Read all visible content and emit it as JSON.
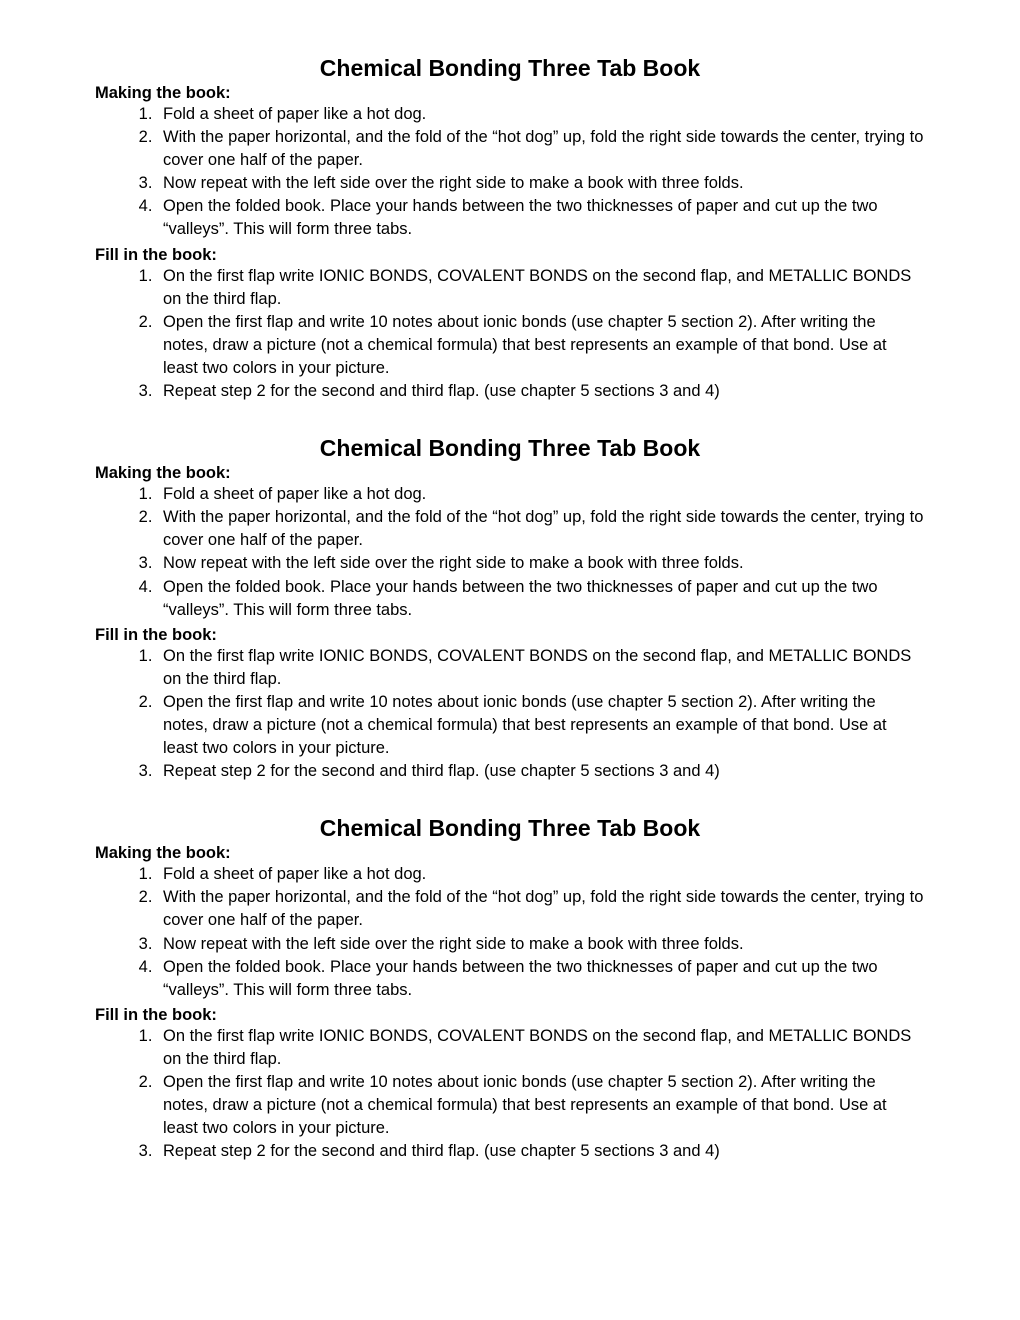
{
  "document": {
    "title": "Chemical Bonding Three Tab Book",
    "sections": [
      {
        "heading": "Making the book:",
        "items": [
          "Fold a sheet of paper like a hot dog.",
          "With the paper horizontal, and the fold of the “hot dog” up, fold the right side towards the center, trying to cover one half of the paper.",
          "Now repeat with the left side over the right side to make a book with three folds.",
          "Open the folded book. Place your hands between the two thicknesses of paper and cut up the two “valleys”. This will form three tabs."
        ]
      },
      {
        "heading": "Fill in the book:",
        "items": [
          "On the first flap write IONIC BONDS, COVALENT BONDS on the second flap, and METALLIC BONDS on the third flap.",
          "Open the first flap and write 10 notes about ionic bonds (use chapter 5 section 2). After writing the notes, draw a picture (not a chemical formula) that best represents an example of that bond. Use at least two colors in your picture.",
          "Repeat step 2 for the second and third flap. (use chapter 5 sections 3 and 4)"
        ]
      }
    ],
    "repeat_count": 3,
    "colors": {
      "background": "#ffffff",
      "text": "#000000"
    },
    "typography": {
      "title_fontsize": 23,
      "body_fontsize": 16.5,
      "font_family": "Verdana, Geneva, sans-serif"
    }
  }
}
